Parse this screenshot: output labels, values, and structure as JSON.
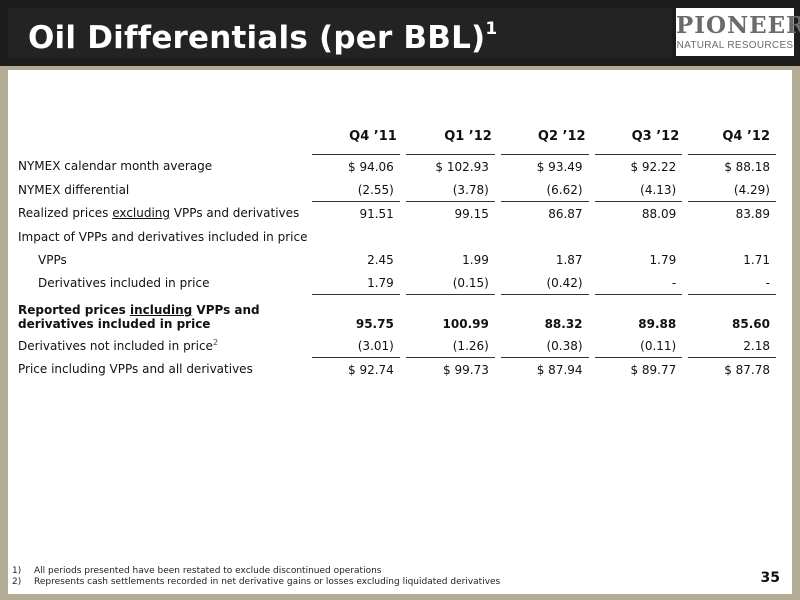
{
  "header": {
    "title": "Oil Differentials (per BBL)",
    "title_sup": "1",
    "logo_main": "PIONEER",
    "logo_sub": "NATURAL RESOURCES"
  },
  "table": {
    "columns": [
      "Q4 ’11",
      "Q1 ’12",
      "Q2 ’12",
      "Q3 ’12",
      "Q4 ’12"
    ],
    "rows": [
      {
        "label": "NYMEX calendar month average",
        "values": [
          "$ 94.06",
          "$ 102.93",
          "$ 93.49",
          "$ 92.22",
          "$ 88.18"
        ]
      },
      {
        "label": "NYMEX differential",
        "values": [
          "(2.55)",
          "(3.78)",
          "(6.62)",
          "(4.13)",
          "(4.29)"
        ]
      },
      {
        "label_pre": "Realized prices ",
        "label_u": "excluding",
        "label_post": " VPPs and derivatives",
        "values": [
          "91.51",
          "99.15",
          "86.87",
          "88.09",
          "83.89"
        ]
      },
      {
        "label": "Impact of VPPs and derivatives included in price"
      },
      {
        "label": "VPPs",
        "values": [
          "2.45",
          "1.99",
          "1.87",
          "1.79",
          "1.71"
        ]
      },
      {
        "label": "Derivatives included in price",
        "values": [
          "1.79",
          "(0.15)",
          "(0.42)",
          "-",
          "-"
        ]
      },
      {
        "label_pre": "Reported prices ",
        "label_u": "including",
        "label_post": " VPPs and derivatives included in price",
        "values": [
          "95.75",
          "100.99",
          "88.32",
          "89.88",
          "85.60"
        ]
      },
      {
        "label": "Derivatives not included in price",
        "label_sup": "2",
        "values": [
          "(3.01)",
          "(1.26)",
          "(0.38)",
          "(0.11)",
          "2.18"
        ]
      },
      {
        "label": "Price including VPPs and all derivatives",
        "values": [
          "$ 92.74",
          "$ 99.73",
          "$ 87.94",
          "$ 89.77",
          "$ 87.78"
        ]
      }
    ]
  },
  "footnotes": [
    {
      "num": "1)",
      "text": "All periods presented have been restated to exclude discontinued operations"
    },
    {
      "num": "2)",
      "text": "Represents cash settlements recorded in net derivative gains or losses excluding liquidated derivatives"
    }
  ],
  "page_number": "35"
}
